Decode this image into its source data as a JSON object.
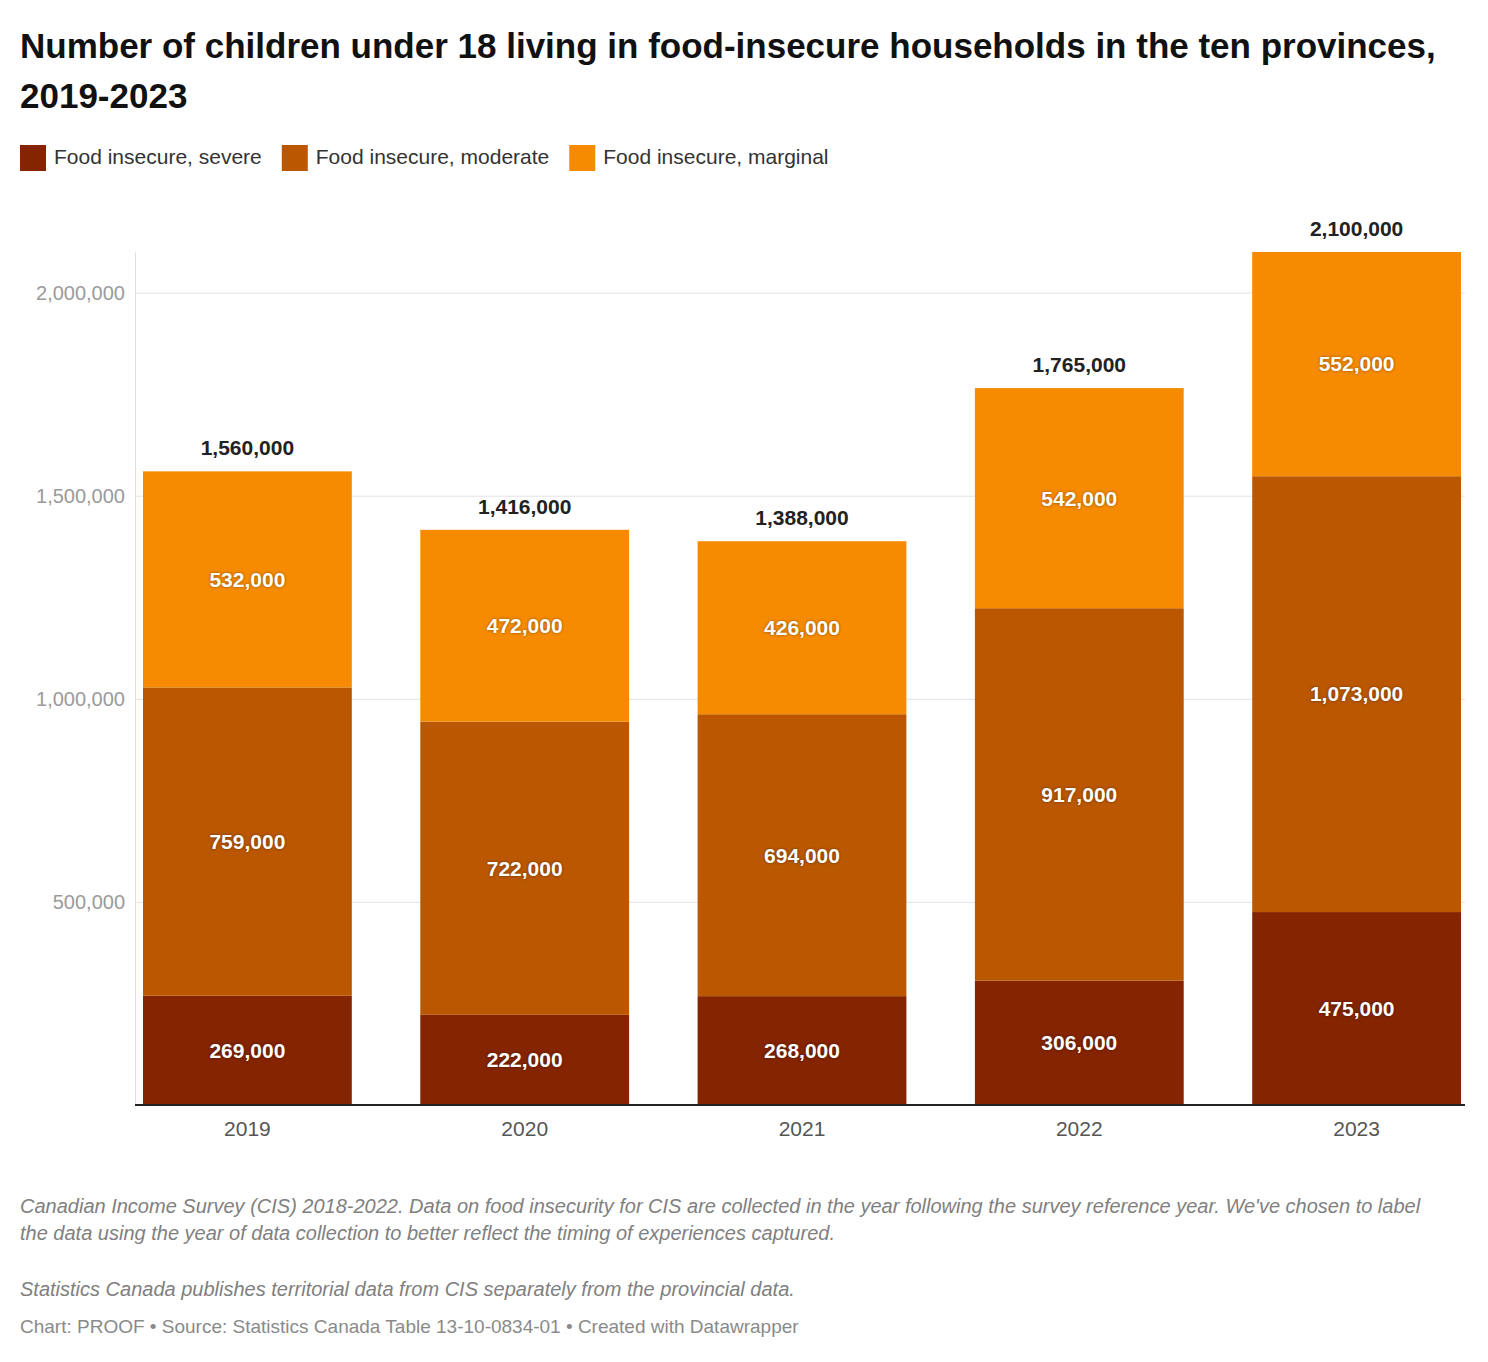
{
  "chart_data": {
    "type": "bar",
    "stacked": true,
    "data_labels": true,
    "grid": true,
    "legend": "top-left",
    "title": "Number of children under 18 living in food-insecure households in the ten provinces, 2019-2023",
    "categories": [
      "2019",
      "2020",
      "2021",
      "2022",
      "2023"
    ],
    "series": [
      {
        "name": "Food insecure, severe",
        "color": "#842400",
        "values": [
          269000,
          222000,
          268000,
          306000,
          475000
        ],
        "value_labels": [
          "269,000",
          "222,000",
          "268,000",
          "306,000",
          "475,000"
        ]
      },
      {
        "name": "Food insecure, moderate",
        "color": "#ba5700",
        "values": [
          759000,
          722000,
          694000,
          917000,
          1073000
        ],
        "value_labels": [
          "759,000",
          "722,000",
          "694,000",
          "917,000",
          "1,073,000"
        ]
      },
      {
        "name": "Food insecure, marginal",
        "color": "#f68b02",
        "values": [
          532000,
          472000,
          426000,
          542000,
          552000
        ],
        "value_labels": [
          "532,000",
          "472,000",
          "426,000",
          "542,000",
          "552,000"
        ]
      }
    ],
    "totals": [
      1560000,
      1416000,
      1388000,
      1765000,
      2100000
    ],
    "total_labels": [
      "1,560,000",
      "1,416,000",
      "1,388,000",
      "1,765,000",
      "2,100,000"
    ],
    "ylim": [
      0,
      2100000
    ],
    "yticks": [
      {
        "value": 500000,
        "label": "500,000"
      },
      {
        "value": 1000000,
        "label": "1,000,000"
      },
      {
        "value": 1500000,
        "label": "1,500,000"
      },
      {
        "value": 2000000,
        "label": "2,000,000"
      }
    ],
    "notes": [
      "Canadian Income Survey (CIS) 2018-2022. Data on food insecurity for CIS are collected in the year following the survey reference year. We've chosen to label the data using the year of data collection to better reflect the timing of experiences captured.",
      "Statistics Canada publishes territorial data from CIS separately from the provincial data."
    ],
    "source": "Chart: PROOF • Source: Statistics Canada Table 13-10-0834-01 • Created with Datawrapper"
  }
}
